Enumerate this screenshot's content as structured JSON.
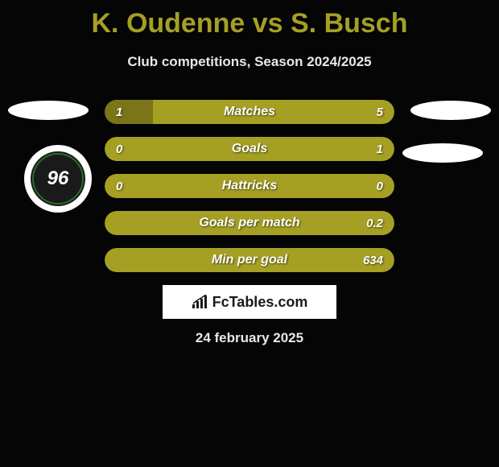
{
  "header": {
    "title": "K. Oudenne vs S. Busch",
    "subtitle": "Club competitions, Season 2024/2025"
  },
  "left_team": {
    "badge_number": "96"
  },
  "stats": [
    {
      "label": "Matches",
      "left_value": "1",
      "right_value": "5",
      "left_pct": 16.7,
      "right_pct": 0
    },
    {
      "label": "Goals",
      "left_value": "0",
      "right_value": "1",
      "left_pct": 0,
      "right_pct": 0
    },
    {
      "label": "Hattricks",
      "left_value": "0",
      "right_value": "0",
      "left_pct": 0,
      "right_pct": 0
    },
    {
      "label": "Goals per match",
      "left_value": "",
      "right_value": "0.2",
      "left_pct": 0,
      "right_pct": 0
    },
    {
      "label": "Min per goal",
      "left_value": "",
      "right_value": "634",
      "left_pct": 0,
      "right_pct": 0
    }
  ],
  "watermark": {
    "text": "FcTables.com"
  },
  "date": "24 february 2025",
  "colors": {
    "bar_bg": "#a5a024",
    "bar_fill": "#7a7519",
    "title_color": "#a5a024",
    "text_color": "#e8e8e8",
    "page_bg": "#050505"
  }
}
